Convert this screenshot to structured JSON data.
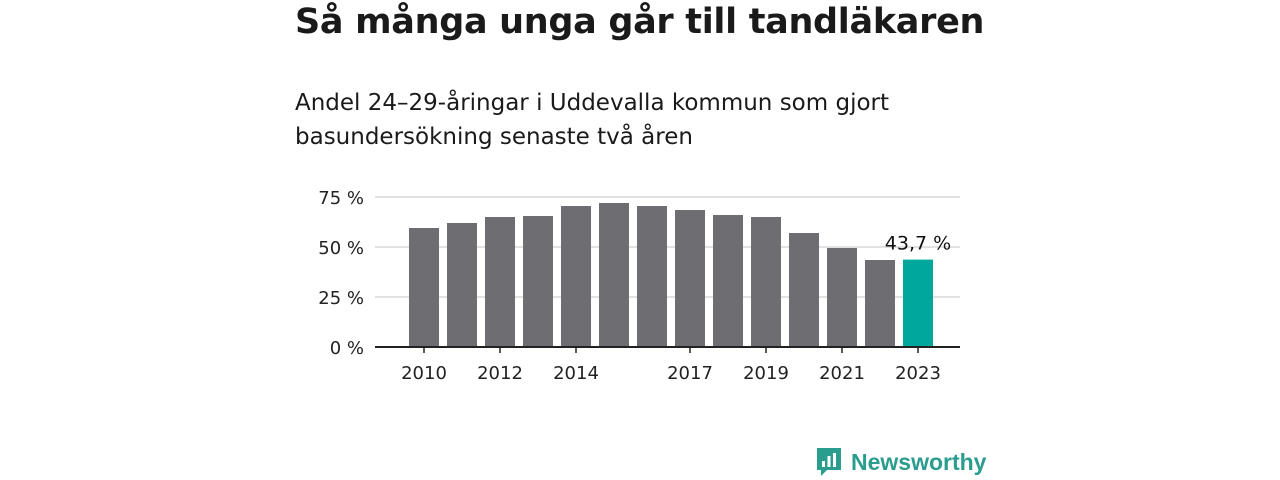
{
  "header": {
    "title": "Så många unga går till tandläkaren",
    "subtitle": "Andel 24–29-åringar i Uddevalla kommun som gjort basundersökning senaste två åren"
  },
  "brand": {
    "name": "Newsworthy",
    "icon": "newsworthy-logo-icon",
    "color": "#2a9d8f"
  },
  "colors": {
    "bar": "#6e6d72",
    "highlight": "#00a79d",
    "grid": "#d9d9d9",
    "axis": "#222222"
  },
  "chart_data": {
    "type": "bar",
    "title": "Så många unga går till tandläkaren",
    "subtitle": "Andel 24–29-åringar i Uddevalla kommun som gjort basundersökning senaste två åren",
    "categories": [
      "2010",
      "2011",
      "2012",
      "2013",
      "2014",
      "2015",
      "2016",
      "2017",
      "2018",
      "2019",
      "2020",
      "2021",
      "2022",
      "2023"
    ],
    "values": [
      59.5,
      62,
      65,
      65.5,
      70.5,
      72,
      70.5,
      68.5,
      66,
      65,
      57,
      49.5,
      43.5,
      43.7
    ],
    "ylim": [
      0,
      75
    ],
    "yticks": [
      0,
      25,
      50,
      75
    ],
    "ytick_labels": [
      "0 %",
      "25 %",
      "50 %",
      "75 %"
    ],
    "xtick_labels": [
      "2010",
      "2012",
      "2014",
      "2017",
      "2019",
      "2021",
      "2023"
    ],
    "highlight_index": 13,
    "annotation": {
      "index": 13,
      "text": "43,7 %"
    },
    "grid": true,
    "xlabel": "",
    "ylabel": ""
  }
}
